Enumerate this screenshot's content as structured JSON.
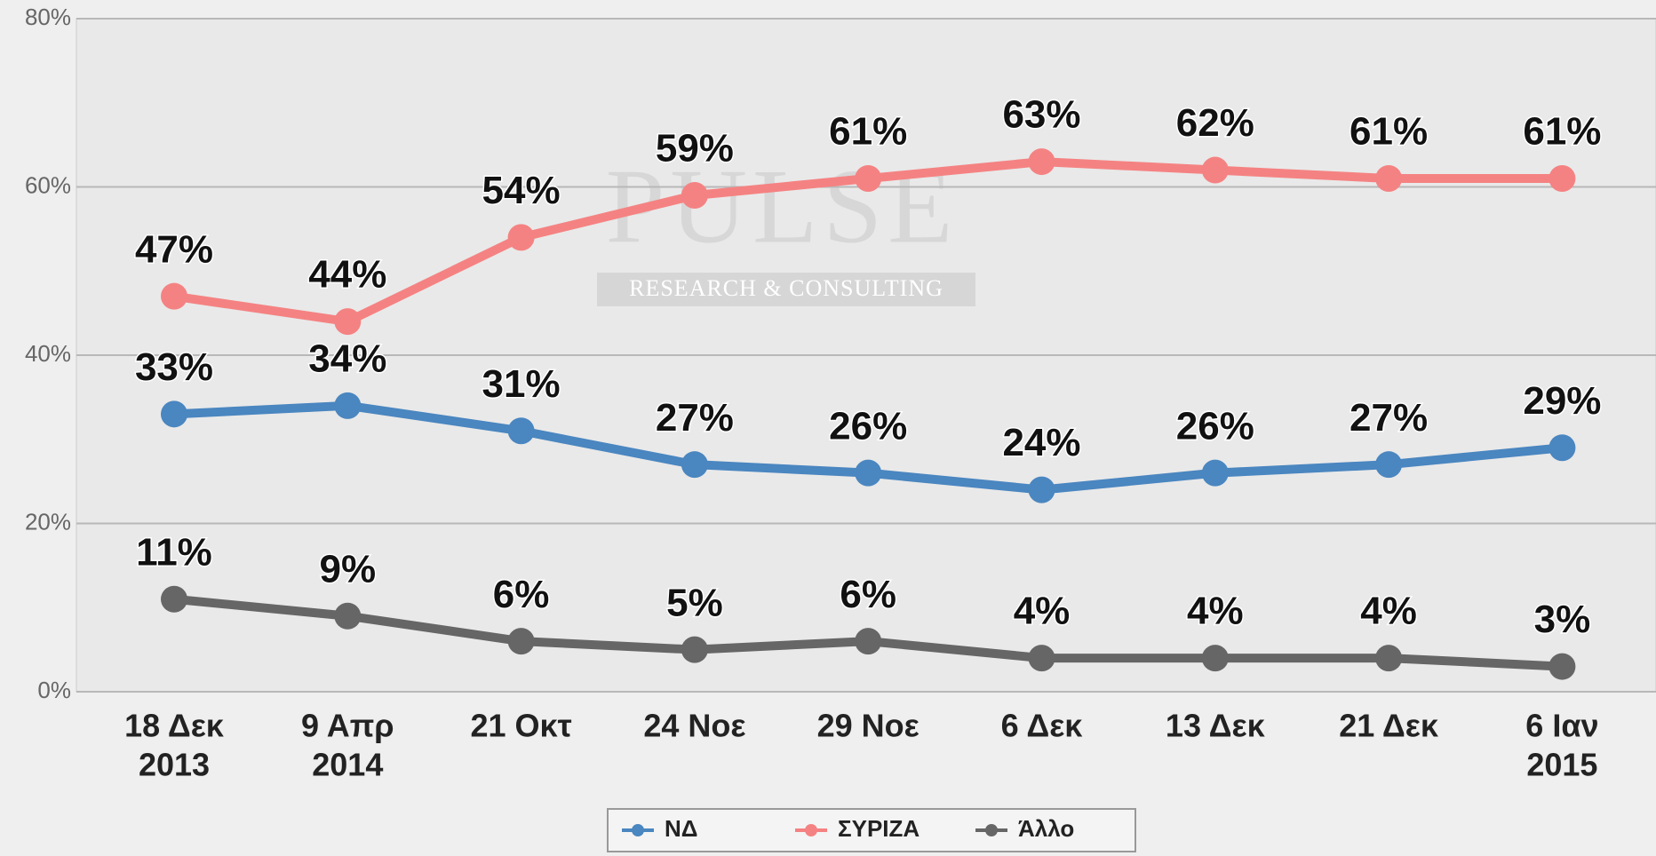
{
  "chart_data": {
    "type": "line",
    "watermark": [
      "PULSE",
      "RESEARCH & CONSULTING"
    ],
    "categories": [
      [
        "18 Δεκ",
        "2013"
      ],
      [
        "9 Απρ",
        "2014"
      ],
      [
        "21 Οκτ"
      ],
      [
        "24 Νοε"
      ],
      [
        "29 Νοε"
      ],
      [
        "6 Δεκ"
      ],
      [
        "13 Δεκ"
      ],
      [
        "21 Δεκ"
      ],
      [
        "6 Ιαν",
        "2015"
      ]
    ],
    "ylim": [
      0,
      80
    ],
    "yticks": [
      {
        "value": 0,
        "label": "0%"
      },
      {
        "value": 20,
        "label": "20%"
      },
      {
        "value": 40,
        "label": "40%"
      },
      {
        "value": 60,
        "label": "60%"
      },
      {
        "value": 80,
        "label": "80%"
      }
    ],
    "grid": true,
    "legend": "bottom",
    "series": [
      {
        "name": "ΝΔ",
        "color": "#4a86c0",
        "values": [
          33,
          34,
          31,
          27,
          26,
          24,
          26,
          27,
          29
        ],
        "value_labels": [
          "33%",
          "34%",
          "31%",
          "27%",
          "26%",
          "24%",
          "26%",
          "27%",
          "29%"
        ]
      },
      {
        "name": "ΣΥΡΙΖΑ",
        "color": "#f58282",
        "values": [
          47,
          44,
          54,
          59,
          61,
          63,
          62,
          61,
          61
        ],
        "value_labels": [
          "47%",
          "44%",
          "54%",
          "59%",
          "61%",
          "63%",
          "62%",
          "61%",
          "61%"
        ]
      },
      {
        "name": "Άλλο",
        "color": "#666666",
        "values": [
          11,
          9,
          6,
          5,
          6,
          4,
          4,
          4,
          3
        ],
        "value_labels": [
          "11%",
          "9%",
          "6%",
          "5%",
          "6%",
          "4%",
          "4%",
          "4%",
          "3%"
        ]
      }
    ]
  }
}
